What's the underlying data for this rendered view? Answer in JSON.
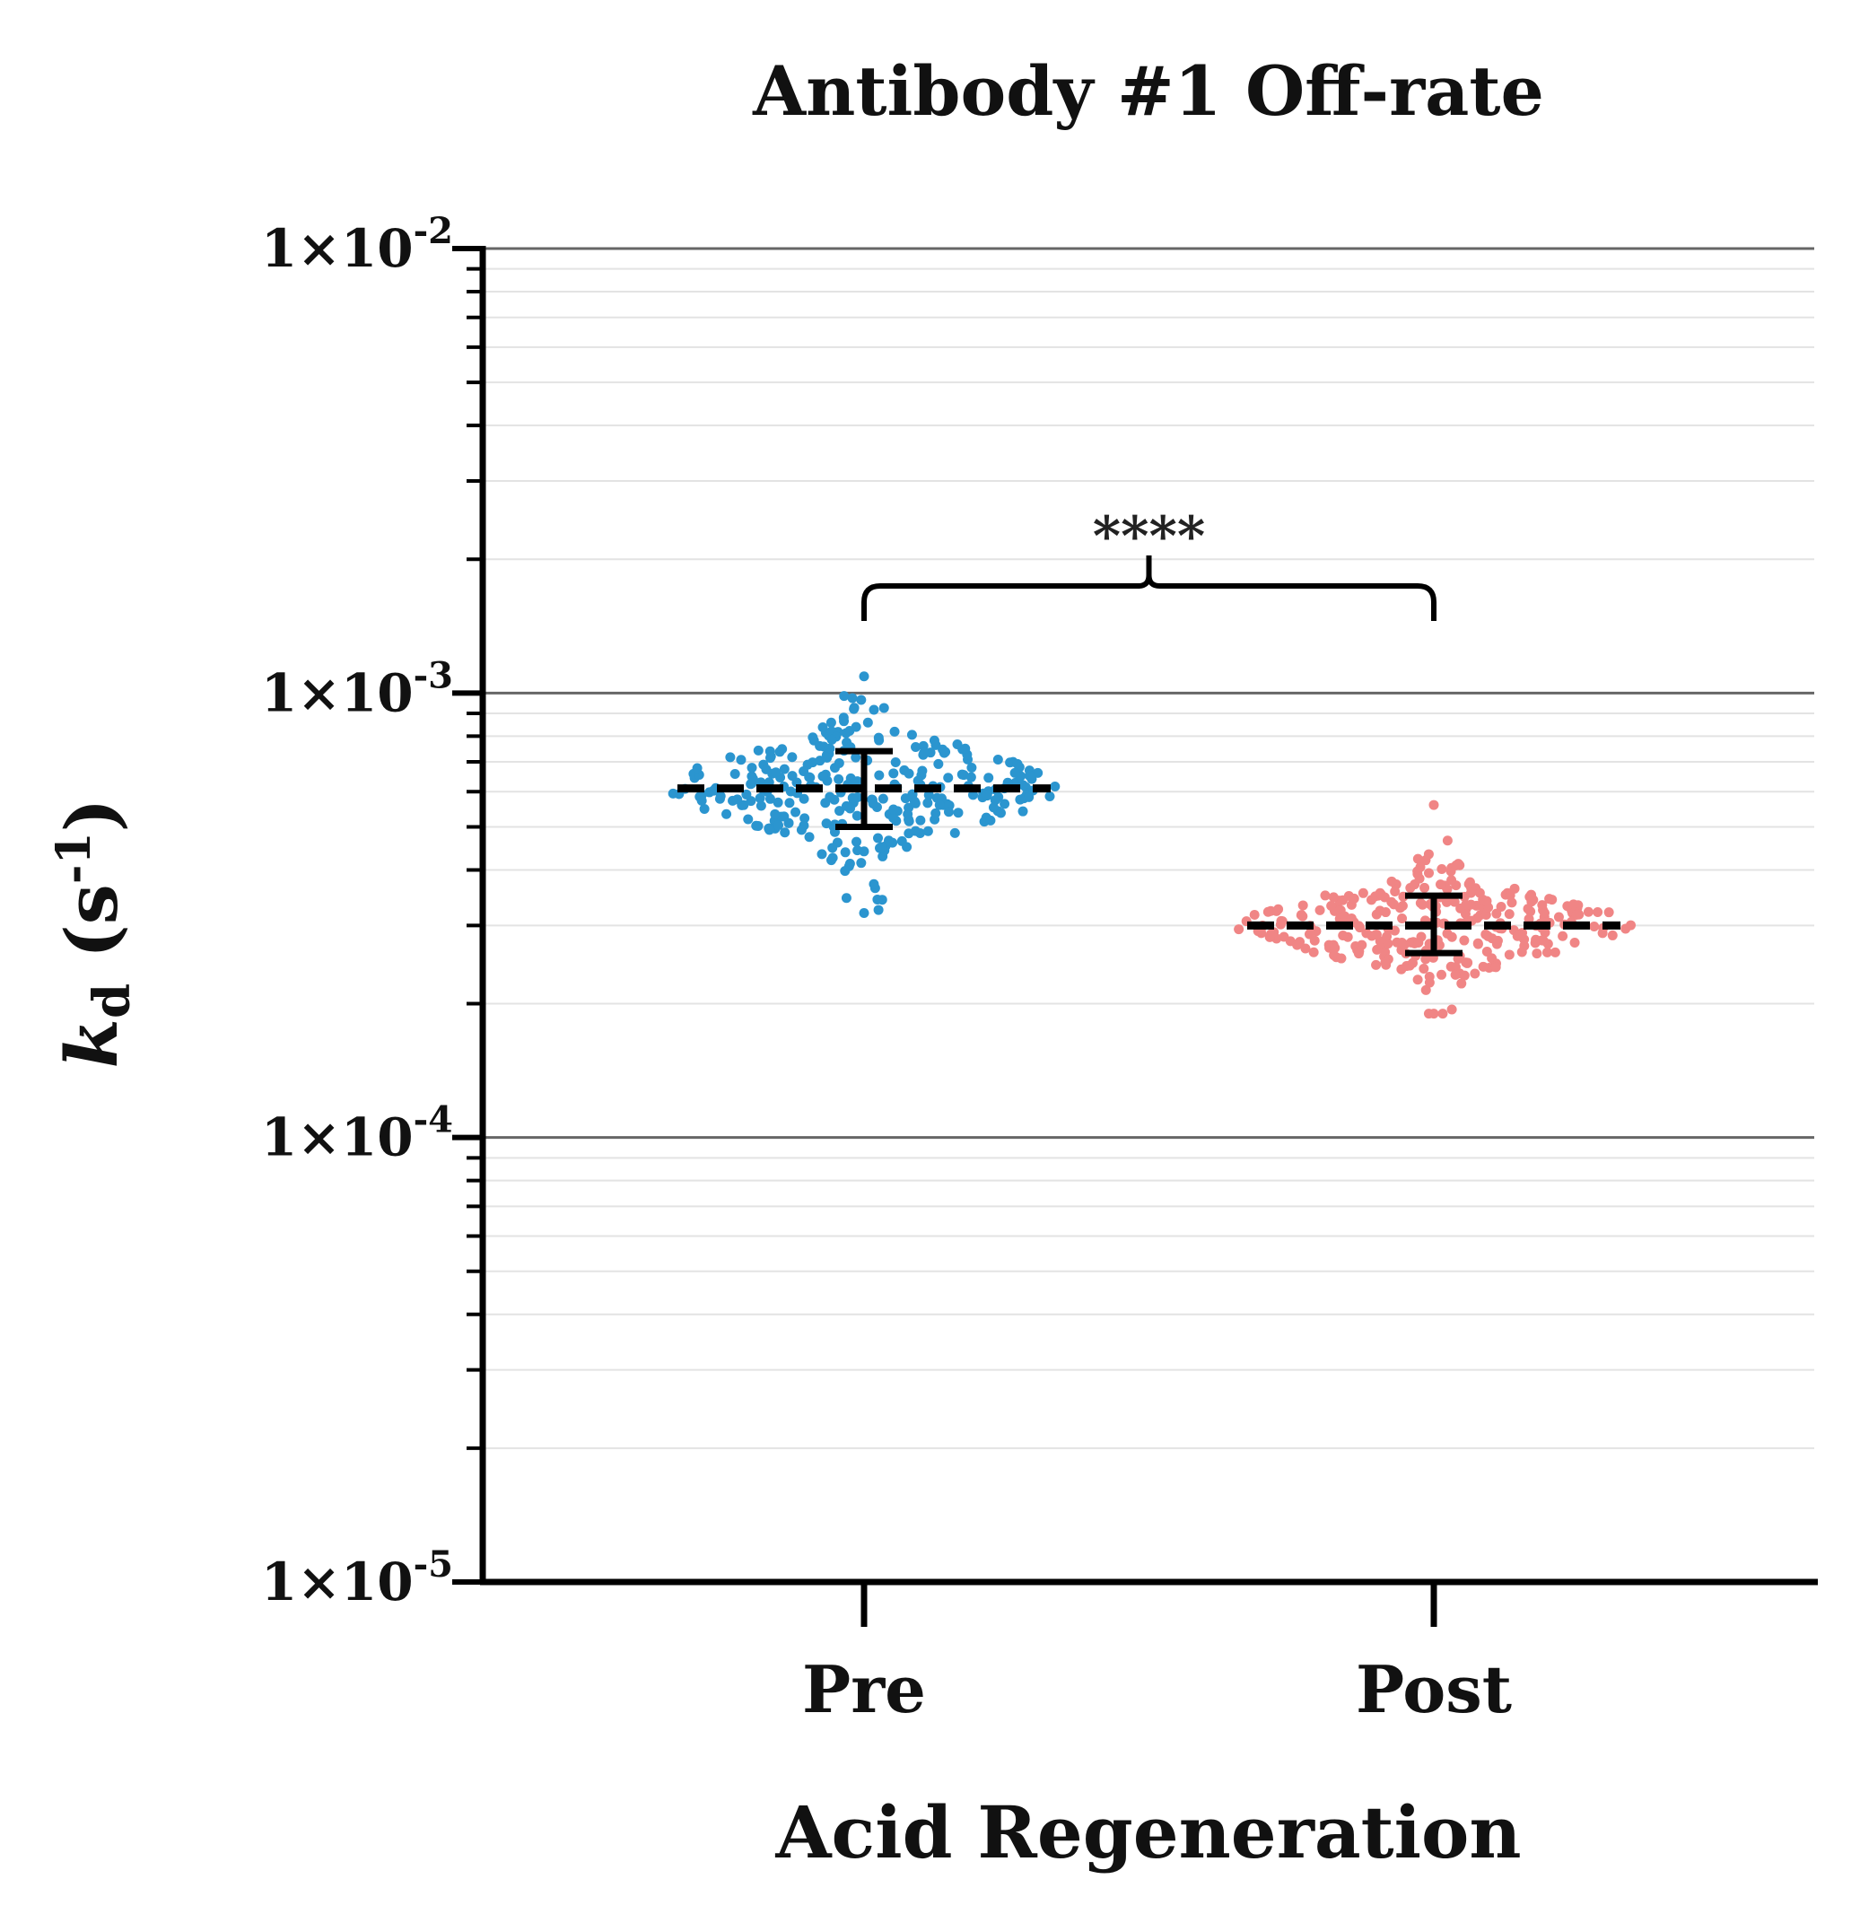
{
  "chart_data": {
    "type": "scatter",
    "title": "Antibody #1 Off-rate",
    "xlabel": "Acid Regeneration",
    "ylabel": {
      "symbol": "k",
      "subscript": "d",
      "unit_open": " (s",
      "unit_exp": "-1",
      "unit_close": ")"
    },
    "y_scale": "log",
    "ylim": [
      1e-05,
      0.01
    ],
    "grid": true,
    "y_ticks": [
      {
        "value": 0.01,
        "base": "1×10",
        "exp": "-2"
      },
      {
        "value": 0.001,
        "base": "1×10",
        "exp": "-3"
      },
      {
        "value": 0.0001,
        "base": "1×10",
        "exp": "-4"
      },
      {
        "value": 1e-05,
        "base": "1×10",
        "exp": "-5"
      }
    ],
    "categories": [
      "Pre",
      "Post"
    ],
    "series": [
      {
        "category": "Pre",
        "color": "#2b95cf",
        "mean": 0.00061,
        "sd_low": 0.0005,
        "sd_high": 0.00074,
        "min": 0.00032,
        "max": 0.00109,
        "n_points_approx": 300
      },
      {
        "category": "Post",
        "color": "#f08585",
        "mean": 0.0003,
        "sd_low": 0.00026,
        "sd_high": 0.00035,
        "min": 0.00019,
        "max": 0.00056,
        "n_points_approx": 300
      }
    ],
    "annotation": {
      "label": "****",
      "between": [
        "Pre",
        "Post"
      ]
    }
  }
}
